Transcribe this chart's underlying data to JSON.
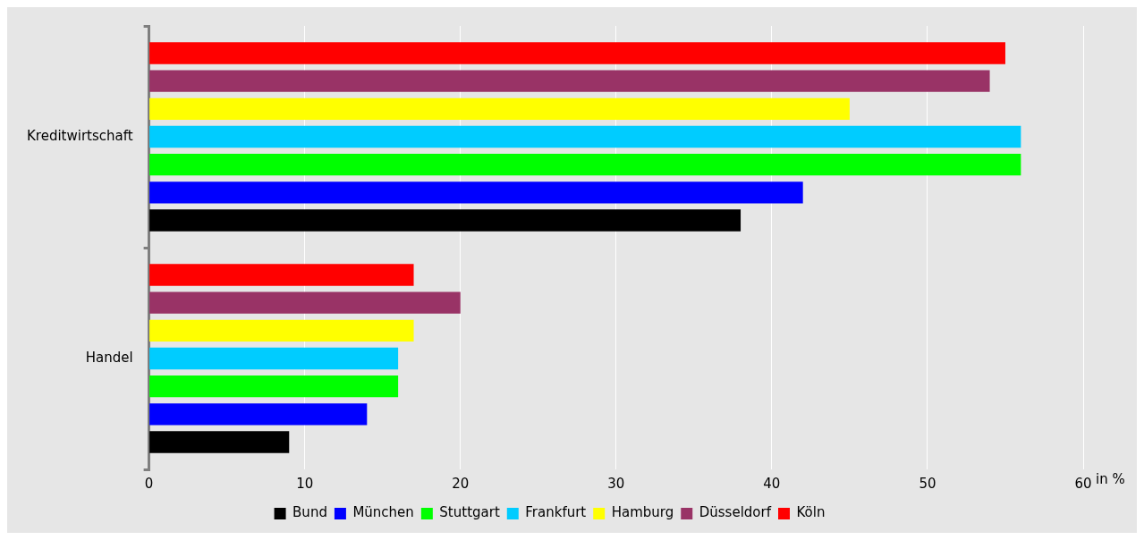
{
  "chart_data": {
    "type": "bar",
    "orientation": "horizontal",
    "xlabel": "in %",
    "categories": [
      "Kreditwirtschaft",
      "Handel"
    ],
    "series": [
      {
        "name": "Bund",
        "color": "#000000",
        "values": [
          38,
          9
        ]
      },
      {
        "name": "München",
        "color": "#0000ff",
        "values": [
          42,
          14
        ]
      },
      {
        "name": "Stuttgart",
        "color": "#00ff00",
        "values": [
          56,
          16
        ]
      },
      {
        "name": "Frankfurt",
        "color": "#00ccff",
        "values": [
          56,
          16
        ]
      },
      {
        "name": "Hamburg",
        "color": "#ffff00",
        "values": [
          45,
          17
        ]
      },
      {
        "name": "Düsseldorf",
        "color": "#993366",
        "values": [
          54,
          20
        ]
      },
      {
        "name": "Köln",
        "color": "#ff0000",
        "values": [
          55,
          17
        ]
      }
    ],
    "xlim": [
      0,
      60
    ],
    "xticks": [
      0,
      10,
      20,
      30,
      40,
      50,
      60
    ],
    "grid": "x",
    "legend": "bottom"
  }
}
